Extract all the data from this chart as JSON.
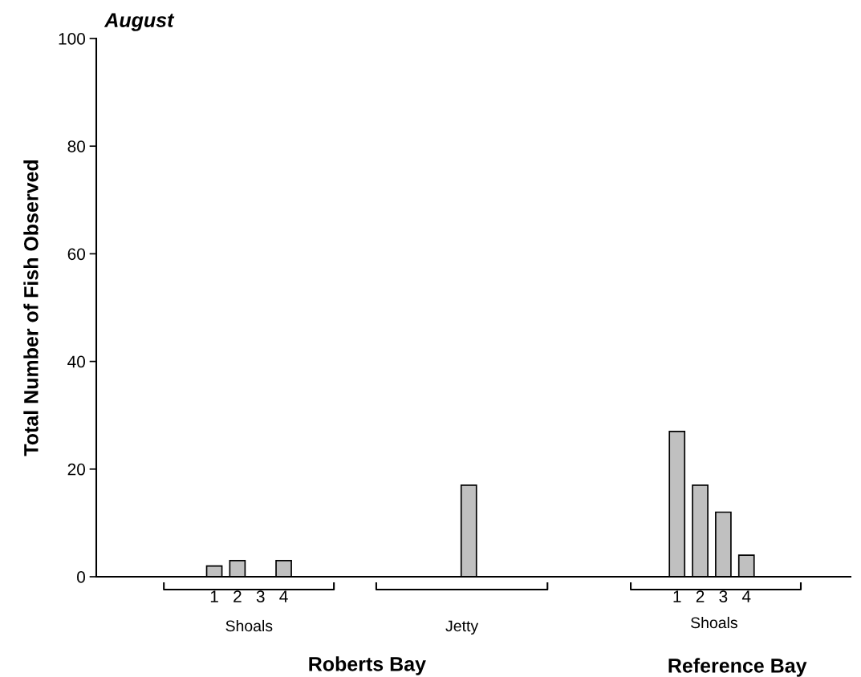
{
  "chart_data": {
    "type": "bar",
    "title": "August",
    "ylabel": "Total Number of Fish Observed",
    "categories": [
      null,
      null,
      null,
      null,
      null,
      "1",
      "2",
      "3",
      "4",
      null,
      null,
      null,
      null,
      null,
      null,
      null,
      null,
      null,
      null,
      null,
      null,
      null,
      null,
      null,
      null,
      "1",
      "2",
      "3",
      "4",
      null,
      null,
      null,
      null
    ],
    "values": [
      null,
      null,
      null,
      null,
      null,
      2,
      3,
      null,
      3,
      null,
      null,
      null,
      null,
      null,
      null,
      null,
      17,
      null,
      null,
      null,
      null,
      null,
      null,
      null,
      null,
      27,
      17,
      12,
      4,
      null,
      null,
      null,
      null
    ],
    "color": "#c0c0c0",
    "ylim": [
      0,
      100
    ],
    "yticks": [
      0,
      20,
      40,
      60,
      80,
      100
    ],
    "annotations": [
      "Shoals",
      "Jetty",
      "Shoals",
      "Roberts Bay",
      "Reference Bay"
    ],
    "grid": false,
    "legend": false
  }
}
